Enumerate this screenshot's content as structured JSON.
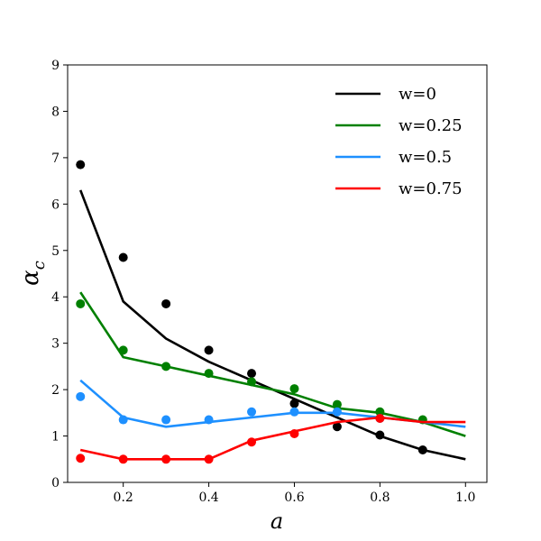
{
  "chart_data": {
    "type": "line",
    "title": "",
    "xlabel": "a",
    "ylabel": "α",
    "ylabel_subscript": "c",
    "xlim": [
      0.07,
      1.05
    ],
    "ylim": [
      0,
      9
    ],
    "xticks": [
      0.2,
      0.4,
      0.6,
      0.8,
      1.0
    ],
    "xtick_labels": [
      "0.2",
      "0.4",
      "0.6",
      "0.8",
      "1.0"
    ],
    "yticks": [
      0,
      1,
      2,
      3,
      4,
      5,
      6,
      7,
      8,
      9
    ],
    "ytick_labels": [
      "0",
      "1",
      "2",
      "3",
      "4",
      "5",
      "6",
      "7",
      "8",
      "9"
    ],
    "grid": false,
    "legend_position": "top-right",
    "series": [
      {
        "name": "w=0",
        "color": "#000000",
        "line": {
          "x": [
            0.1,
            0.2,
            0.3,
            0.4,
            0.5,
            0.6,
            0.7,
            0.8,
            0.9,
            1.0
          ],
          "y": [
            6.3,
            3.9,
            3.1,
            2.6,
            2.2,
            1.8,
            1.4,
            1.0,
            0.7,
            0.5
          ]
        },
        "points": {
          "x": [
            0.1,
            0.2,
            0.3,
            0.4,
            0.5,
            0.6,
            0.7,
            0.8,
            0.9
          ],
          "y": [
            6.85,
            4.85,
            3.85,
            2.85,
            2.35,
            1.7,
            1.2,
            1.02,
            0.7
          ]
        }
      },
      {
        "name": "w=0.25",
        "color": "#008000",
        "line": {
          "x": [
            0.1,
            0.2,
            0.3,
            0.4,
            0.5,
            0.6,
            0.7,
            0.8,
            0.9,
            1.0
          ],
          "y": [
            4.1,
            2.7,
            2.5,
            2.3,
            2.1,
            1.9,
            1.6,
            1.5,
            1.3,
            1.0
          ]
        },
        "points": {
          "x": [
            0.1,
            0.2,
            0.3,
            0.4,
            0.5,
            0.6,
            0.7,
            0.8,
            0.9
          ],
          "y": [
            3.85,
            2.85,
            2.5,
            2.35,
            2.17,
            2.02,
            1.68,
            1.52,
            1.35
          ]
        }
      },
      {
        "name": "w=0.5",
        "color": "#1e90ff",
        "line": {
          "x": [
            0.1,
            0.2,
            0.3,
            0.4,
            0.5,
            0.6,
            0.7,
            0.8,
            0.9,
            1.0
          ],
          "y": [
            2.2,
            1.4,
            1.2,
            1.3,
            1.4,
            1.5,
            1.5,
            1.4,
            1.3,
            1.2
          ]
        },
        "points": {
          "x": [
            0.1,
            0.2,
            0.3,
            0.4,
            0.5,
            0.6,
            0.7,
            0.8
          ],
          "y": [
            1.85,
            1.35,
            1.35,
            1.35,
            1.52,
            1.52,
            1.52,
            1.38
          ]
        }
      },
      {
        "name": "w=0.75",
        "color": "#ff0000",
        "line": {
          "x": [
            0.1,
            0.2,
            0.3,
            0.4,
            0.5,
            0.6,
            0.7,
            0.8,
            0.9,
            1.0
          ],
          "y": [
            0.7,
            0.5,
            0.5,
            0.5,
            0.9,
            1.1,
            1.3,
            1.4,
            1.3,
            1.3
          ]
        },
        "points": {
          "x": [
            0.1,
            0.2,
            0.3,
            0.4,
            0.5,
            0.6,
            0.8
          ],
          "y": [
            0.52,
            0.5,
            0.5,
            0.5,
            0.87,
            1.05,
            1.38
          ]
        }
      }
    ]
  }
}
